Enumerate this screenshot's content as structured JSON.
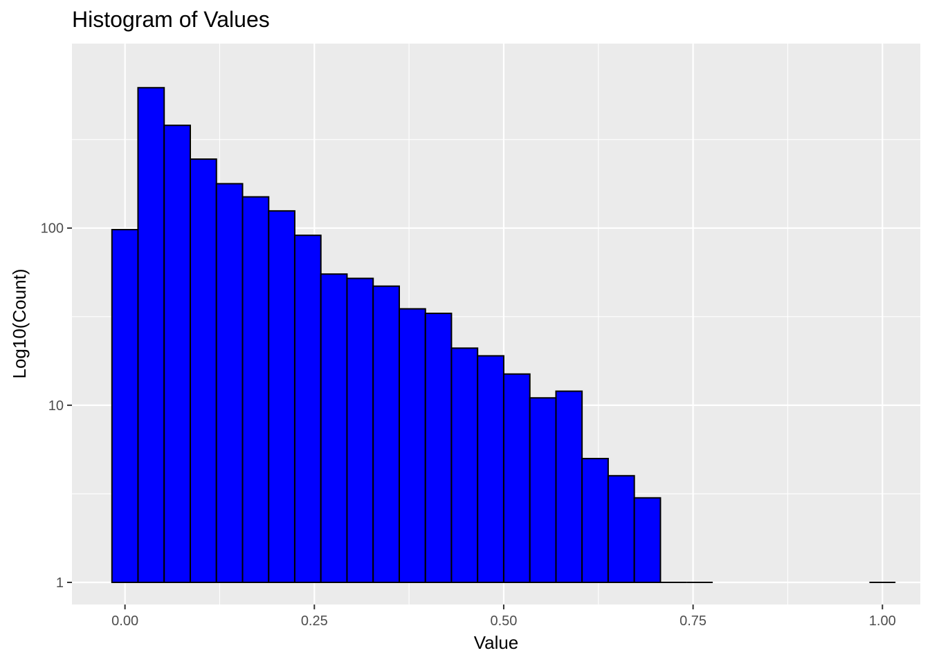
{
  "chart_data": {
    "type": "bar",
    "title": "Histogram of Values",
    "xlabel": "Value",
    "ylabel": "Log10(Count)",
    "y_scale": "log10",
    "grid": true,
    "legend": "none",
    "xlim": [
      -0.07,
      1.05
    ],
    "ylim": [
      0.75,
      1100
    ],
    "x_ticks": [
      0,
      0.25,
      0.5,
      0.75,
      1
    ],
    "x_tick_labels": [
      "0.00",
      "0.25",
      "0.50",
      "0.75",
      "1.00"
    ],
    "y_ticks": [
      1,
      10,
      100
    ],
    "y_tick_labels": [
      "1",
      "10",
      "100"
    ],
    "colors": {
      "fill": "#0000ff",
      "outline": "#000000",
      "panel": "#ebebeb",
      "grid": "#ffffff"
    },
    "bins": [
      {
        "x0": -0.0172,
        "x1": 0.0172,
        "count": 98
      },
      {
        "x0": 0.0172,
        "x1": 0.0517,
        "count": 620
      },
      {
        "x0": 0.0517,
        "x1": 0.0862,
        "count": 380
      },
      {
        "x0": 0.0862,
        "x1": 0.1207,
        "count": 245
      },
      {
        "x0": 0.1207,
        "x1": 0.1552,
        "count": 178
      },
      {
        "x0": 0.1552,
        "x1": 0.1897,
        "count": 150
      },
      {
        "x0": 0.1897,
        "x1": 0.2241,
        "count": 125
      },
      {
        "x0": 0.2241,
        "x1": 0.2586,
        "count": 91
      },
      {
        "x0": 0.2586,
        "x1": 0.2931,
        "count": 55
      },
      {
        "x0": 0.2931,
        "x1": 0.3276,
        "count": 52
      },
      {
        "x0": 0.3276,
        "x1": 0.3621,
        "count": 47
      },
      {
        "x0": 0.3621,
        "x1": 0.3966,
        "count": 35
      },
      {
        "x0": 0.3966,
        "x1": 0.431,
        "count": 33
      },
      {
        "x0": 0.431,
        "x1": 0.4655,
        "count": 21
      },
      {
        "x0": 0.4655,
        "x1": 0.5,
        "count": 19
      },
      {
        "x0": 0.5,
        "x1": 0.5345,
        "count": 15
      },
      {
        "x0": 0.5345,
        "x1": 0.569,
        "count": 11
      },
      {
        "x0": 0.569,
        "x1": 0.6034,
        "count": 12
      },
      {
        "x0": 0.6034,
        "x1": 0.6379,
        "count": 5
      },
      {
        "x0": 0.6379,
        "x1": 0.6724,
        "count": 4
      },
      {
        "x0": 0.6724,
        "x1": 0.7069,
        "count": 3
      },
      {
        "x0": 0.7069,
        "x1": 0.7414,
        "count": 1
      },
      {
        "x0": 0.7414,
        "x1": 0.7759,
        "count": 1
      },
      {
        "x0": 0.9828,
        "x1": 1.0172,
        "count": 1
      }
    ]
  }
}
